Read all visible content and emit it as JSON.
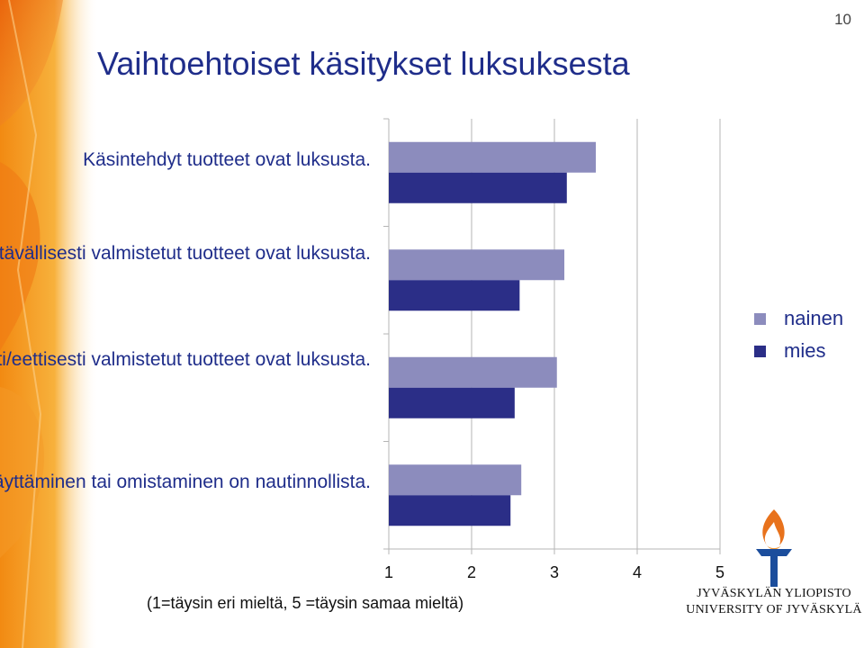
{
  "slide": {
    "page_number": "10",
    "title": "Vaihtoehtoiset käsitykset luksuksesta",
    "scale_note": "(1=täysin eri mieltä, 5 =täysin samaa mieltä)"
  },
  "colors": {
    "nainen": "#8c8cbd",
    "mies": "#2b2e87",
    "title_text": "#1f2d8a",
    "grid": "#b5b5b5",
    "logo_flame": "#e8721c",
    "logo_blue": "#1b4d9c"
  },
  "chart_data": {
    "type": "bar",
    "orientation": "horizontal",
    "categories": [
      "Käsintehdyt tuotteet ovat luksusta.",
      "Erityisen ympäristöystävällisesti valmistetut tuotteet ovat luksusta.",
      "Erityisen reilusti/eettisesti valmistetut tuotteet ovat luksusta.",
      "Luksustuotteen käyttäminen tai omistaminen on nautinnollista."
    ],
    "series": [
      {
        "name": "nainen",
        "values": [
          3.5,
          3.12,
          3.03,
          2.6
        ]
      },
      {
        "name": "mies",
        "values": [
          3.15,
          2.58,
          2.52,
          2.47
        ]
      }
    ],
    "xlim": [
      1,
      5
    ],
    "xticks": [
      "1",
      "2",
      "3",
      "4",
      "5"
    ],
    "grid": true,
    "legend": "right"
  },
  "logo": {
    "name_fi": "JYVÄSKYLÄN YLIOPISTO",
    "name_en": "UNIVERSITY OF JYVÄSKYLÄ"
  }
}
